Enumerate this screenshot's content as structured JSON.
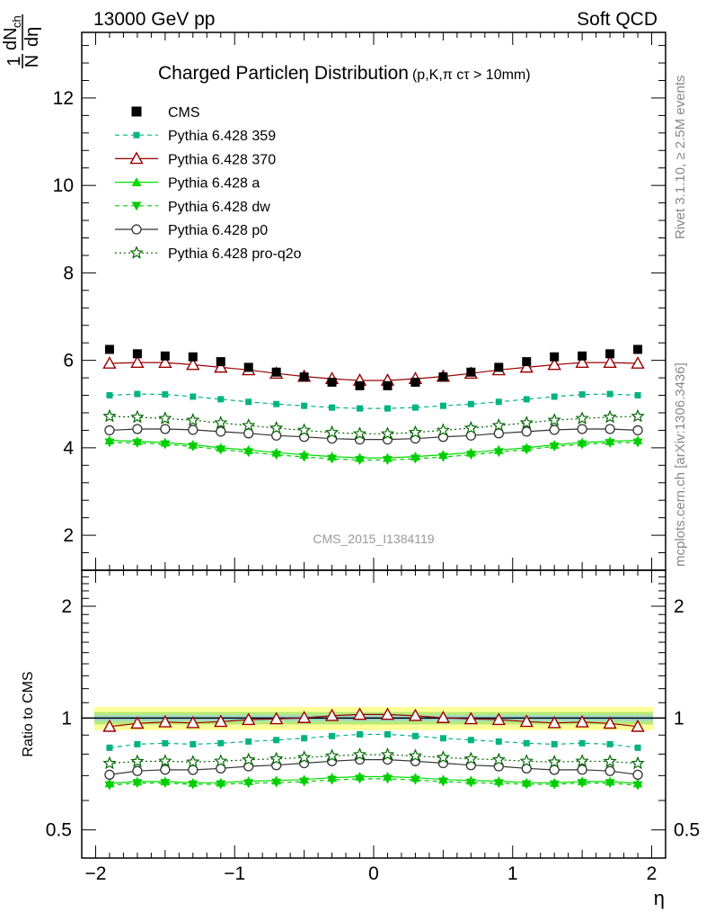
{
  "header": {
    "left": "13000 GeV pp",
    "right": "Soft QCD"
  },
  "side_labels": {
    "rivet": "Rivet 3.1.10, ≥ 2.5M events",
    "mcplots": "mcplots.cern.ch [arXiv:1306.3436]"
  },
  "chart_data": {
    "type": "scatter",
    "title": "Charged Particleη Distribution",
    "title_suffix": "(p,K,π cτ > 10mm)",
    "watermark": "CMS_2015_I1384119",
    "ylabel": "1/N dN_ch/dη",
    "ylabel_parts": {
      "num_top": "1",
      "num_d": "dN",
      "num_sub": "ch",
      "den_n": "N",
      "den_d": "dη"
    },
    "xlabel": "η",
    "ratio_ylabel": "Ratio to CMS",
    "xlim": [
      -2.1,
      2.1
    ],
    "ylim": [
      1.2,
      13.5
    ],
    "ratio_ylim": [
      0.42,
      2.5
    ],
    "ratio_scale": "log",
    "x_ticks": [
      -2,
      -1,
      0,
      1,
      2
    ],
    "x_tick_labels": [
      "−2",
      "−1",
      "0",
      "1",
      "2"
    ],
    "y_ticks": [
      2,
      4,
      6,
      8,
      10,
      12
    ],
    "y_tick_labels": [
      "2",
      "4",
      "6",
      "8",
      "10",
      "12"
    ],
    "ratio_ticks": [
      0.5,
      1,
      2
    ],
    "ratio_tick_labels": [
      "0.5",
      "1",
      "2"
    ],
    "legend_position": "top-left",
    "x": [
      -1.9,
      -1.7,
      -1.5,
      -1.3,
      -1.1,
      -0.9,
      -0.7,
      -0.5,
      -0.3,
      -0.1,
      0.1,
      0.3,
      0.5,
      0.7,
      0.9,
      1.1,
      1.3,
      1.5,
      1.7,
      1.9
    ],
    "data": {
      "name": "CMS",
      "values": [
        6.25,
        6.15,
        6.1,
        6.08,
        5.97,
        5.84,
        5.73,
        5.62,
        5.5,
        5.42,
        5.42,
        5.5,
        5.62,
        5.73,
        5.84,
        5.97,
        6.08,
        6.1,
        6.15,
        6.25
      ],
      "band_frac": 0.06,
      "color": "#000000"
    },
    "series": [
      {
        "name": "Pythia 6.428 359",
        "color": "#00b383",
        "marker": "square",
        "line": "dashed",
        "values": [
          5.2,
          5.23,
          5.22,
          5.17,
          5.11,
          5.05,
          5.0,
          4.96,
          4.92,
          4.9,
          4.9,
          4.92,
          4.96,
          5.0,
          5.05,
          5.11,
          5.17,
          5.22,
          5.23,
          5.2
        ]
      },
      {
        "name": "Pythia 6.428 370",
        "color": "#990000",
        "marker": "triangle-open",
        "line": "solid",
        "values": [
          5.93,
          5.95,
          5.95,
          5.9,
          5.84,
          5.78,
          5.7,
          5.63,
          5.58,
          5.54,
          5.54,
          5.58,
          5.63,
          5.7,
          5.78,
          5.84,
          5.9,
          5.95,
          5.95,
          5.93
        ]
      },
      {
        "name": "Pythia 6.428 a",
        "color": "#00dd00",
        "marker": "triangle",
        "line": "solid",
        "values": [
          4.17,
          4.15,
          4.12,
          4.07,
          4.0,
          3.95,
          3.89,
          3.84,
          3.8,
          3.77,
          3.77,
          3.8,
          3.84,
          3.89,
          3.95,
          4.0,
          4.07,
          4.12,
          4.15,
          4.17
        ]
      },
      {
        "name": "Pythia 6.428 dw",
        "color": "#00cc00",
        "marker": "triangle-down",
        "line": "dashed",
        "values": [
          4.12,
          4.11,
          4.08,
          4.03,
          3.96,
          3.9,
          3.84,
          3.79,
          3.75,
          3.72,
          3.72,
          3.75,
          3.79,
          3.84,
          3.9,
          3.96,
          4.03,
          4.08,
          4.11,
          4.12
        ]
      },
      {
        "name": "Pythia 6.428 p0",
        "color": "#333333",
        "marker": "circle-open",
        "line": "solid",
        "values": [
          4.4,
          4.43,
          4.43,
          4.41,
          4.37,
          4.33,
          4.28,
          4.25,
          4.21,
          4.19,
          4.19,
          4.21,
          4.25,
          4.28,
          4.33,
          4.37,
          4.41,
          4.43,
          4.43,
          4.4
        ]
      },
      {
        "name": "Pythia 6.428 pro-q2o",
        "color": "#006600",
        "marker": "star-open",
        "line": "dotted",
        "values": [
          4.72,
          4.7,
          4.67,
          4.63,
          4.57,
          4.51,
          4.45,
          4.4,
          4.35,
          4.32,
          4.32,
          4.35,
          4.4,
          4.45,
          4.51,
          4.57,
          4.63,
          4.67,
          4.7,
          4.72
        ]
      }
    ]
  }
}
